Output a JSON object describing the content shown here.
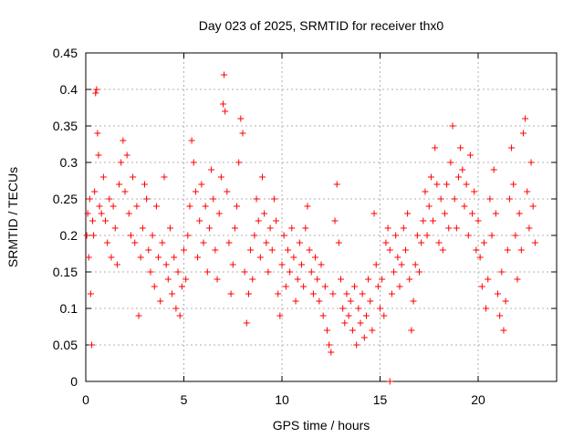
{
  "chart_data": {
    "type": "scatter",
    "title": "Day 023 of 2025, SRMTID for receiver thx0",
    "xlabel": "GPS time / hours",
    "ylabel": "SRMTID / TECUs",
    "xlim": [
      0,
      24
    ],
    "ylim": [
      0,
      0.45
    ],
    "x_ticks": [
      0,
      5,
      10,
      15,
      20
    ],
    "y_ticks": [
      0,
      0.05,
      0.1,
      0.15,
      0.2,
      0.25,
      0.3,
      0.35,
      0.4,
      0.45
    ],
    "x_tick_labels": [
      "0",
      "5",
      "10",
      "15",
      "20"
    ],
    "y_tick_labels": [
      "0",
      "0.05",
      "0.1",
      "0.15",
      "0.2",
      "0.25",
      "0.3",
      "0.35",
      "0.4",
      "0.45"
    ],
    "grid": true,
    "marker": "plus",
    "marker_color": "#ff0000",
    "series": [
      {
        "values": [
          [
            0.05,
            0.2
          ],
          [
            0.1,
            0.23
          ],
          [
            0.15,
            0.17
          ],
          [
            0.2,
            0.25
          ],
          [
            0.25,
            0.12
          ],
          [
            0.3,
            0.05
          ],
          [
            0.35,
            0.22
          ],
          [
            0.4,
            0.2
          ],
          [
            0.45,
            0.26
          ],
          [
            0.5,
            0.395
          ],
          [
            0.55,
            0.4
          ],
          [
            0.6,
            0.34
          ],
          [
            0.65,
            0.31
          ],
          [
            0.7,
            0.24
          ],
          [
            0.8,
            0.23
          ],
          [
            0.9,
            0.28
          ],
          [
            1.0,
            0.22
          ],
          [
            1.1,
            0.19
          ],
          [
            1.2,
            0.25
          ],
          [
            1.3,
            0.17
          ],
          [
            1.4,
            0.24
          ],
          [
            1.5,
            0.21
          ],
          [
            1.6,
            0.16
          ],
          [
            1.7,
            0.27
          ],
          [
            1.8,
            0.3
          ],
          [
            1.9,
            0.33
          ],
          [
            2.0,
            0.26
          ],
          [
            2.1,
            0.31
          ],
          [
            2.2,
            0.23
          ],
          [
            2.3,
            0.2
          ],
          [
            2.4,
            0.28
          ],
          [
            2.5,
            0.19
          ],
          [
            2.6,
            0.24
          ],
          [
            2.7,
            0.09
          ],
          [
            2.8,
            0.17
          ],
          [
            2.9,
            0.21
          ],
          [
            3.0,
            0.27
          ],
          [
            3.1,
            0.25
          ],
          [
            3.2,
            0.18
          ],
          [
            3.3,
            0.15
          ],
          [
            3.4,
            0.2
          ],
          [
            3.5,
            0.13
          ],
          [
            3.6,
            0.24
          ],
          [
            3.7,
            0.17
          ],
          [
            3.8,
            0.11
          ],
          [
            3.9,
            0.19
          ],
          [
            4.0,
            0.28
          ],
          [
            4.1,
            0.16
          ],
          [
            4.2,
            0.14
          ],
          [
            4.3,
            0.21
          ],
          [
            4.4,
            0.12
          ],
          [
            4.5,
            0.17
          ],
          [
            4.6,
            0.1
          ],
          [
            4.7,
            0.15
          ],
          [
            4.8,
            0.09
          ],
          [
            4.9,
            0.13
          ],
          [
            5.0,
            0.18
          ],
          [
            5.1,
            0.14
          ],
          [
            5.2,
            0.2
          ],
          [
            5.3,
            0.24
          ],
          [
            5.4,
            0.33
          ],
          [
            5.5,
            0.3
          ],
          [
            5.6,
            0.26
          ],
          [
            5.7,
            0.17
          ],
          [
            5.8,
            0.22
          ],
          [
            5.9,
            0.27
          ],
          [
            6.0,
            0.19
          ],
          [
            6.1,
            0.24
          ],
          [
            6.2,
            0.15
          ],
          [
            6.3,
            0.21
          ],
          [
            6.4,
            0.29
          ],
          [
            6.5,
            0.25
          ],
          [
            6.6,
            0.18
          ],
          [
            6.7,
            0.14
          ],
          [
            6.8,
            0.23
          ],
          [
            6.9,
            0.28
          ],
          [
            7.0,
            0.38
          ],
          [
            7.05,
            0.42
          ],
          [
            7.1,
            0.37
          ],
          [
            7.2,
            0.26
          ],
          [
            7.3,
            0.19
          ],
          [
            7.4,
            0.12
          ],
          [
            7.5,
            0.16
          ],
          [
            7.6,
            0.21
          ],
          [
            7.7,
            0.24
          ],
          [
            7.8,
            0.3
          ],
          [
            7.9,
            0.36
          ],
          [
            8.0,
            0.34
          ],
          [
            8.1,
            0.15
          ],
          [
            8.2,
            0.08
          ],
          [
            8.3,
            0.12
          ],
          [
            8.4,
            0.18
          ],
          [
            8.5,
            0.14
          ],
          [
            8.6,
            0.2
          ],
          [
            8.7,
            0.25
          ],
          [
            8.8,
            0.22
          ],
          [
            8.9,
            0.17
          ],
          [
            9.0,
            0.28
          ],
          [
            9.1,
            0.23
          ],
          [
            9.2,
            0.19
          ],
          [
            9.3,
            0.15
          ],
          [
            9.4,
            0.21
          ],
          [
            9.5,
            0.18
          ],
          [
            9.6,
            0.25
          ],
          [
            9.7,
            0.22
          ],
          [
            9.8,
            0.12
          ],
          [
            9.9,
            0.09
          ],
          [
            10.0,
            0.16
          ],
          [
            10.1,
            0.2
          ],
          [
            10.2,
            0.13
          ],
          [
            10.3,
            0.18
          ],
          [
            10.4,
            0.15
          ],
          [
            10.5,
            0.21
          ],
          [
            10.6,
            0.17
          ],
          [
            10.7,
            0.11
          ],
          [
            10.8,
            0.14
          ],
          [
            10.9,
            0.19
          ],
          [
            11.0,
            0.16
          ],
          [
            11.1,
            0.13
          ],
          [
            11.2,
            0.21
          ],
          [
            11.3,
            0.24
          ],
          [
            11.4,
            0.18
          ],
          [
            11.5,
            0.15
          ],
          [
            11.6,
            0.12
          ],
          [
            11.7,
            0.17
          ],
          [
            11.8,
            0.14
          ],
          [
            11.9,
            0.11
          ],
          [
            12.0,
            0.16
          ],
          [
            12.1,
            0.09
          ],
          [
            12.2,
            0.13
          ],
          [
            12.3,
            0.07
          ],
          [
            12.4,
            0.05
          ],
          [
            12.5,
            0.04
          ],
          [
            12.6,
            0.12
          ],
          [
            12.7,
            0.22
          ],
          [
            12.8,
            0.27
          ],
          [
            12.9,
            0.19
          ],
          [
            13.0,
            0.14
          ],
          [
            13.1,
            0.1
          ],
          [
            13.2,
            0.08
          ],
          [
            13.3,
            0.12
          ],
          [
            13.4,
            0.09
          ],
          [
            13.5,
            0.11
          ],
          [
            13.6,
            0.07
          ],
          [
            13.7,
            0.13
          ],
          [
            13.8,
            0.05
          ],
          [
            13.9,
            0.1
          ],
          [
            14.0,
            0.08
          ],
          [
            14.1,
            0.12
          ],
          [
            14.2,
            0.06
          ],
          [
            14.3,
            0.09
          ],
          [
            14.4,
            0.14
          ],
          [
            14.5,
            0.11
          ],
          [
            14.6,
            0.07
          ],
          [
            14.7,
            0.23
          ],
          [
            14.8,
            0.16
          ],
          [
            14.9,
            0.13
          ],
          [
            15.0,
            0.1
          ],
          [
            15.1,
            0.14
          ],
          [
            15.2,
            0.09
          ],
          [
            15.3,
            0.19
          ],
          [
            15.4,
            0.21
          ],
          [
            15.5,
            0.18
          ],
          [
            15.6,
            0.12
          ],
          [
            15.7,
            0.15
          ],
          [
            15.8,
            0.2
          ],
          [
            15.9,
            0.17
          ],
          [
            16.0,
            0.13
          ],
          [
            16.1,
            0.16
          ],
          [
            16.2,
            0.21
          ],
          [
            16.3,
            0.18
          ],
          [
            16.4,
            0.23
          ],
          [
            16.5,
            0.14
          ],
          [
            16.6,
            0.07
          ],
          [
            16.7,
            0.11
          ],
          [
            16.8,
            0.16
          ],
          [
            16.9,
            0.2
          ],
          [
            17.0,
            0.15
          ],
          [
            17.1,
            0.19
          ],
          [
            17.2,
            0.22
          ],
          [
            17.3,
            0.26
          ],
          [
            17.4,
            0.2
          ],
          [
            17.5,
            0.24
          ],
          [
            17.6,
            0.28
          ],
          [
            17.7,
            0.22
          ],
          [
            17.8,
            0.32
          ],
          [
            17.9,
            0.27
          ],
          [
            18.0,
            0.19
          ],
          [
            18.1,
            0.25
          ],
          [
            18.2,
            0.18
          ],
          [
            18.3,
            0.23
          ],
          [
            18.4,
            0.27
          ],
          [
            18.5,
            0.21
          ],
          [
            18.6,
            0.3
          ],
          [
            18.7,
            0.35
          ],
          [
            18.8,
            0.25
          ],
          [
            18.9,
            0.21
          ],
          [
            19.0,
            0.28
          ],
          [
            19.1,
            0.32
          ],
          [
            19.2,
            0.29
          ],
          [
            19.3,
            0.24
          ],
          [
            19.4,
            0.27
          ],
          [
            19.5,
            0.2
          ],
          [
            19.6,
            0.31
          ],
          [
            19.7,
            0.23
          ],
          [
            19.8,
            0.26
          ],
          [
            19.9,
            0.18
          ],
          [
            20.0,
            0.22
          ],
          [
            20.1,
            0.17
          ],
          [
            20.2,
            0.13
          ],
          [
            20.3,
            0.19
          ],
          [
            20.4,
            0.1
          ],
          [
            20.5,
            0.14
          ],
          [
            20.6,
            0.25
          ],
          [
            20.7,
            0.2
          ],
          [
            20.8,
            0.29
          ],
          [
            20.9,
            0.23
          ],
          [
            21.0,
            0.12
          ],
          [
            21.1,
            0.09
          ],
          [
            21.2,
            0.15
          ],
          [
            21.3,
            0.07
          ],
          [
            21.4,
            0.11
          ],
          [
            21.5,
            0.18
          ],
          [
            21.6,
            0.25
          ],
          [
            21.7,
            0.32
          ],
          [
            21.8,
            0.27
          ],
          [
            21.9,
            0.2
          ],
          [
            22.0,
            0.14
          ],
          [
            22.1,
            0.23
          ],
          [
            22.2,
            0.18
          ],
          [
            22.3,
            0.34
          ],
          [
            22.4,
            0.36
          ],
          [
            22.5,
            0.26
          ],
          [
            22.6,
            0.21
          ],
          [
            22.7,
            0.3
          ],
          [
            22.8,
            0.24
          ],
          [
            22.9,
            0.19
          ],
          [
            15.5,
            0.0
          ]
        ]
      }
    ]
  }
}
